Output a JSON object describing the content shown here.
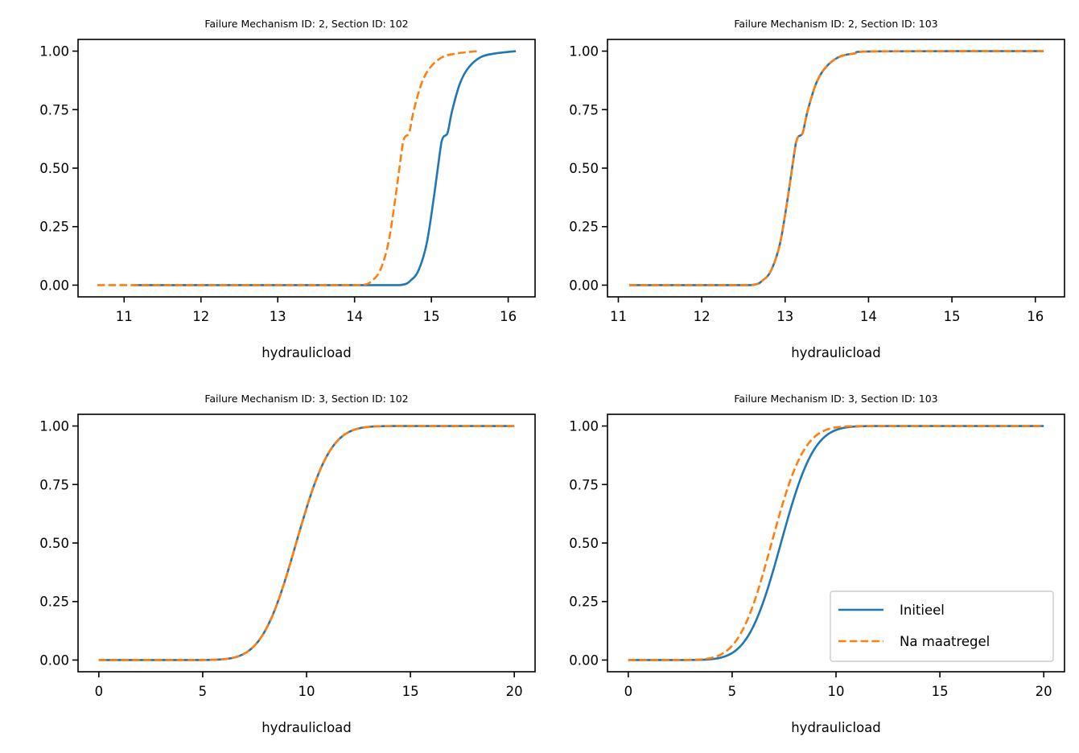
{
  "colors": {
    "initieel": "#1f77b4",
    "na_maatregel": "#ff7f0e"
  },
  "legend": {
    "placement": "lower right",
    "entries": [
      "Initieel",
      "Na maatregel"
    ]
  },
  "chart_data": [
    {
      "type": "line",
      "title": "Failure Mechanism ID: 2, Section ID: 102",
      "xlabel": "hydraulicload",
      "ylabel": "",
      "xlim": [
        10.4,
        16.35
      ],
      "ylim": [
        -0.05,
        1.05
      ],
      "xticks": [
        11,
        12,
        13,
        14,
        15,
        16
      ],
      "yticks": [
        "0.00",
        "0.25",
        "0.50",
        "0.75",
        "1.00"
      ],
      "series": [
        {
          "name": "Initieel",
          "style": "solid",
          "x": [
            11.13,
            14.0,
            14.58,
            14.74,
            14.84,
            14.94,
            15.03,
            15.13,
            15.16,
            15.21,
            15.27,
            15.37,
            15.48,
            15.64,
            15.83,
            16.1
          ],
          "y": [
            0,
            0,
            0,
            0.023,
            0.069,
            0.18,
            0.37,
            0.61,
            0.635,
            0.65,
            0.745,
            0.86,
            0.928,
            0.974,
            0.99,
            1.0
          ]
        },
        {
          "name": "Na maatregel",
          "style": "dashed",
          "x": [
            10.65,
            13.5,
            14.08,
            14.24,
            14.34,
            14.44,
            14.53,
            14.63,
            14.66,
            14.71,
            14.77,
            14.87,
            14.98,
            15.14,
            15.33,
            15.6
          ],
          "y": [
            0,
            0,
            0,
            0.023,
            0.069,
            0.18,
            0.37,
            0.61,
            0.635,
            0.65,
            0.745,
            0.86,
            0.928,
            0.974,
            0.99,
            1.0
          ]
        }
      ]
    },
    {
      "type": "line",
      "title": "Failure Mechanism ID: 2, Section ID: 103",
      "xlabel": "hydraulicload",
      "ylabel": "",
      "xlim": [
        10.87,
        16.35
      ],
      "ylim": [
        -0.05,
        1.05
      ],
      "xticks": [
        11,
        12,
        13,
        14,
        15,
        16
      ],
      "yticks": [
        "0.00",
        "0.25",
        "0.50",
        "0.75",
        "1.00"
      ],
      "series": [
        {
          "name": "Initieel",
          "style": "solid",
          "x": [
            11.13,
            12.0,
            12.58,
            12.74,
            12.84,
            12.94,
            13.03,
            13.13,
            13.16,
            13.21,
            13.27,
            13.37,
            13.48,
            13.64,
            13.83,
            14.1,
            16.1
          ],
          "y": [
            0,
            0,
            0,
            0.023,
            0.069,
            0.18,
            0.37,
            0.61,
            0.635,
            0.65,
            0.745,
            0.86,
            0.928,
            0.974,
            0.99,
            0.999,
            1.0
          ]
        },
        {
          "name": "Na maatregel",
          "style": "dashed",
          "x": [
            11.13,
            12.0,
            12.58,
            12.74,
            12.84,
            12.94,
            13.03,
            13.13,
            13.16,
            13.21,
            13.27,
            13.37,
            13.48,
            13.64,
            13.83,
            14.1,
            16.1
          ],
          "y": [
            0,
            0,
            0,
            0.023,
            0.069,
            0.18,
            0.37,
            0.61,
            0.635,
            0.65,
            0.745,
            0.86,
            0.928,
            0.974,
            0.99,
            0.999,
            1.0
          ]
        }
      ]
    },
    {
      "type": "line",
      "title": "Failure Mechanism ID: 3, Section ID: 102",
      "xlabel": "hydraulicload",
      "ylabel": "",
      "xlim": [
        -1,
        21
      ],
      "ylim": [
        -0.05,
        1.05
      ],
      "xticks": [
        0,
        5,
        10,
        15,
        20
      ],
      "yticks": [
        "0.00",
        "0.25",
        "0.50",
        "0.75",
        "1.00"
      ],
      "series": [
        {
          "name": "Initieel",
          "style": "solid",
          "distribution": "normal-cdf",
          "mu": 9.5,
          "sigma": 1.3,
          "x_range": [
            0,
            20
          ]
        },
        {
          "name": "Na maatregel",
          "style": "dashed",
          "distribution": "normal-cdf",
          "mu": 9.5,
          "sigma": 1.3,
          "x_range": [
            0,
            20
          ]
        }
      ]
    },
    {
      "type": "line",
      "title": "Failure Mechanism ID: 3, Section ID: 103",
      "xlabel": "hydraulicload",
      "ylabel": "",
      "xlim": [
        -1,
        21
      ],
      "ylim": [
        -0.05,
        1.05
      ],
      "xticks": [
        0,
        5,
        10,
        15,
        20
      ],
      "yticks": [
        "0.00",
        "0.25",
        "0.50",
        "0.75",
        "1.00"
      ],
      "legend": true,
      "series": [
        {
          "name": "Initieel",
          "style": "solid",
          "distribution": "normal-cdf",
          "mu": 7.35,
          "sigma": 1.25,
          "x_range": [
            0,
            20
          ]
        },
        {
          "name": "Na maatregel",
          "style": "dashed",
          "distribution": "normal-cdf",
          "mu": 6.9,
          "sigma": 1.23,
          "x_range": [
            0,
            20
          ]
        }
      ]
    }
  ]
}
